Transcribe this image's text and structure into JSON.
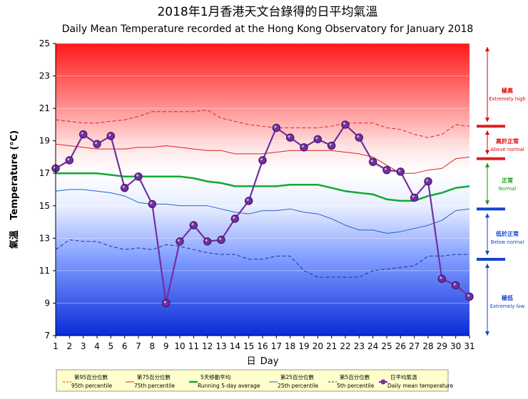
{
  "title_zh": "2018年1月香港天文台錄得的日平均氣溫",
  "title_en": "Daily Mean Temperature recorded at the Hong Kong Observatory for January 2018",
  "ylabel_zh": "氣溫",
  "ylabel_en": "Temperature (°C)",
  "xlabel_zh": "日",
  "xlabel_en": "Day",
  "zones": [
    {
      "zh": "極高",
      "en": "Extremely high",
      "color": "#e00000"
    },
    {
      "zh": "高於正常",
      "en": "Above normal",
      "color": "#e00000"
    },
    {
      "zh": "正常",
      "en": "Normal",
      "color": "#119911"
    },
    {
      "zh": "低於正常",
      "en": "Below normal",
      "color": "#1144cc"
    },
    {
      "zh": "極低",
      "en": "Extremely low",
      "color": "#1144cc"
    }
  ],
  "legend": [
    {
      "zh": "第95百分位數",
      "en": "95th percentile",
      "color": "#e02020",
      "style": "dashed"
    },
    {
      "zh": "第75百分位數",
      "en": "75th percentile",
      "color": "#e02020",
      "style": "solid"
    },
    {
      "zh": "5天移動平均",
      "en": "Running 5-day average",
      "color": "#11aa33",
      "style": "solid-thick"
    },
    {
      "zh": "第25百分位數",
      "en": "25th percentile",
      "color": "#2266cc",
      "style": "solid"
    },
    {
      "zh": "第5百分位數",
      "en": "5th percentile",
      "color": "#1133aa",
      "style": "dashed"
    },
    {
      "zh": "日平均氣溫",
      "en": "Daily mean temperature",
      "color": "#7030a0",
      "style": "marker"
    }
  ],
  "chart_data": {
    "type": "line",
    "x": [
      1,
      2,
      3,
      4,
      5,
      6,
      7,
      8,
      9,
      10,
      11,
      12,
      13,
      14,
      15,
      16,
      17,
      18,
      19,
      20,
      21,
      22,
      23,
      24,
      25,
      26,
      27,
      28,
      29,
      30,
      31
    ],
    "ylim": [
      7,
      25
    ],
    "yticks": [
      7,
      9,
      11,
      13,
      15,
      17,
      19,
      21,
      23,
      25
    ],
    "series": [
      {
        "name": "Daily mean temperature",
        "color": "#7030a0",
        "values": [
          17.3,
          17.8,
          19.4,
          18.8,
          19.3,
          16.1,
          16.8,
          15.1,
          9.0,
          12.8,
          13.8,
          12.8,
          12.9,
          14.2,
          15.3,
          17.8,
          19.8,
          19.2,
          18.6,
          19.1,
          18.7,
          20.0,
          19.2,
          17.7,
          17.2,
          17.1,
          15.5,
          16.5,
          10.5,
          10.1,
          9.4
        ]
      },
      {
        "name": "95th percentile",
        "color": "#e02020",
        "values": [
          20.3,
          20.2,
          20.1,
          20.1,
          20.2,
          20.3,
          20.5,
          20.8,
          20.8,
          20.8,
          20.8,
          20.9,
          20.4,
          20.2,
          20.0,
          19.9,
          19.8,
          19.8,
          19.8,
          19.8,
          19.9,
          20.1,
          20.1,
          20.1,
          19.8,
          19.7,
          19.4,
          19.2,
          19.4,
          20.0,
          19.9
        ]
      },
      {
        "name": "75th percentile",
        "color": "#e02020",
        "values": [
          18.8,
          18.7,
          18.6,
          18.5,
          18.5,
          18.5,
          18.6,
          18.6,
          18.7,
          18.6,
          18.5,
          18.4,
          18.4,
          18.2,
          18.2,
          18.2,
          18.3,
          18.4,
          18.4,
          18.4,
          18.4,
          18.3,
          18.2,
          18.0,
          17.5,
          17.0,
          17.0,
          17.2,
          17.3,
          17.9,
          18.0
        ]
      },
      {
        "name": "Running 5-day average",
        "color": "#11aa33",
        "values": [
          17.0,
          17.0,
          17.0,
          17.0,
          16.9,
          16.8,
          16.8,
          16.8,
          16.8,
          16.8,
          16.7,
          16.5,
          16.4,
          16.2,
          16.2,
          16.2,
          16.2,
          16.3,
          16.3,
          16.3,
          16.1,
          15.9,
          15.8,
          15.7,
          15.4,
          15.3,
          15.3,
          15.6,
          15.8,
          16.1,
          16.2
        ]
      },
      {
        "name": "25th percentile",
        "color": "#2266cc",
        "values": [
          15.9,
          16.0,
          16.0,
          15.9,
          15.8,
          15.6,
          15.2,
          15.1,
          15.1,
          15.0,
          15.0,
          15.0,
          14.8,
          14.6,
          14.5,
          14.7,
          14.7,
          14.8,
          14.6,
          14.5,
          14.2,
          13.8,
          13.5,
          13.5,
          13.3,
          13.4,
          13.6,
          13.8,
          14.1,
          14.7,
          14.8
        ]
      },
      {
        "name": "5th percentile",
        "color": "#1133aa",
        "values": [
          12.3,
          12.9,
          12.8,
          12.8,
          12.5,
          12.3,
          12.4,
          12.3,
          12.6,
          12.5,
          12.3,
          12.1,
          12.0,
          12.0,
          11.7,
          11.7,
          11.9,
          11.9,
          11.0,
          10.6,
          10.6,
          10.6,
          10.6,
          11.0,
          11.1,
          11.2,
          11.3,
          11.9,
          11.9,
          12.0,
          12.0
        ]
      }
    ]
  }
}
